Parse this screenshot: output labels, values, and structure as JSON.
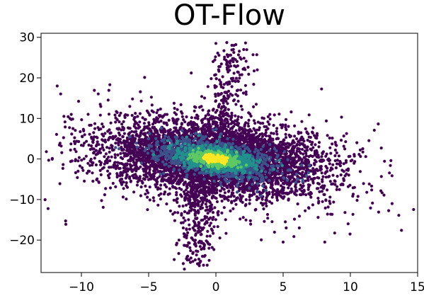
{
  "chart_data": {
    "type": "scatter",
    "title": "OT-Flow",
    "xlabel": "",
    "ylabel": "",
    "xlim": [
      -13,
      15
    ],
    "ylim": [
      -28,
      31
    ],
    "grid": false,
    "legend": "none",
    "colormap": "viridis (point density)",
    "x_ticks": [
      -10,
      -5,
      0,
      5,
      10,
      15
    ],
    "x_tick_labels": [
      "−10",
      "−5",
      "0",
      "5",
      "10",
      "15"
    ],
    "y_ticks": [
      30,
      20,
      10,
      0,
      -10,
      -20
    ],
    "y_tick_labels": [
      "30",
      "20",
      "10",
      "0",
      "−10",
      "−20"
    ],
    "colors": [
      "#440154",
      "#3b528b",
      "#21918c",
      "#5ec962",
      "#fde725"
    ],
    "distribution": {
      "core": {
        "center": [
          0,
          0
        ],
        "slope": -0.6,
        "sd_along": 4.2,
        "sd_across": 3.0
      },
      "arm_upper": {
        "from": [
          0,
          4
        ],
        "to": [
          1.5,
          28
        ]
      },
      "arm_lower": {
        "from": [
          -1,
          -5
        ],
        "to": [
          -1.5,
          -26
        ]
      }
    },
    "points": [
      [
        -11.8,
        18
      ],
      [
        -11.3,
        10.5
      ],
      [
        -11.5,
        3.2
      ],
      [
        -11.6,
        -6.1
      ],
      [
        -10.2,
        4.3
      ],
      [
        -10.3,
        -4.6
      ],
      [
        -9.4,
        8.3
      ],
      [
        -9.2,
        -1.5
      ],
      [
        -8.6,
        13.5
      ],
      [
        -8.9,
        2.1
      ],
      [
        -8.2,
        -7.3
      ],
      [
        -7.4,
        11.7
      ],
      [
        -6.9,
        -9.4
      ],
      [
        -5.3,
        20.1
      ],
      [
        -6.2,
        14.8
      ],
      [
        -3.2,
        -13.6
      ],
      [
        -2.1,
        -18.2
      ],
      [
        -1.5,
        -21.3
      ],
      [
        -1.0,
        -24.0
      ],
      [
        -0.5,
        -25.0
      ],
      [
        0.0,
        28.5
      ],
      [
        0.6,
        26.7
      ],
      [
        1.3,
        27.0
      ],
      [
        1.8,
        25.0
      ],
      [
        0.2,
        22.0
      ],
      [
        1.0,
        19.0
      ],
      [
        3.0,
        13.5
      ],
      [
        5.6,
        11.6
      ],
      [
        7.2,
        6.4
      ],
      [
        9.0,
        -1.2
      ],
      [
        10.2,
        -7.1
      ],
      [
        10.5,
        -10.2
      ],
      [
        11.5,
        -12.1
      ],
      [
        12.1,
        -13.1
      ],
      [
        12.3,
        2.7
      ],
      [
        12.5,
        -8.9
      ],
      [
        13.1,
        -11.0
      ],
      [
        13.6,
        -13.9
      ],
      [
        13.8,
        -17.6
      ],
      [
        8.3,
        -13.6
      ],
      [
        3.6,
        -15.4
      ],
      [
        6.2,
        -17.0
      ],
      [
        7.6,
        -14.4
      ],
      [
        5.0,
        -20.5
      ],
      [
        9.6,
        -13.2
      ]
    ]
  }
}
